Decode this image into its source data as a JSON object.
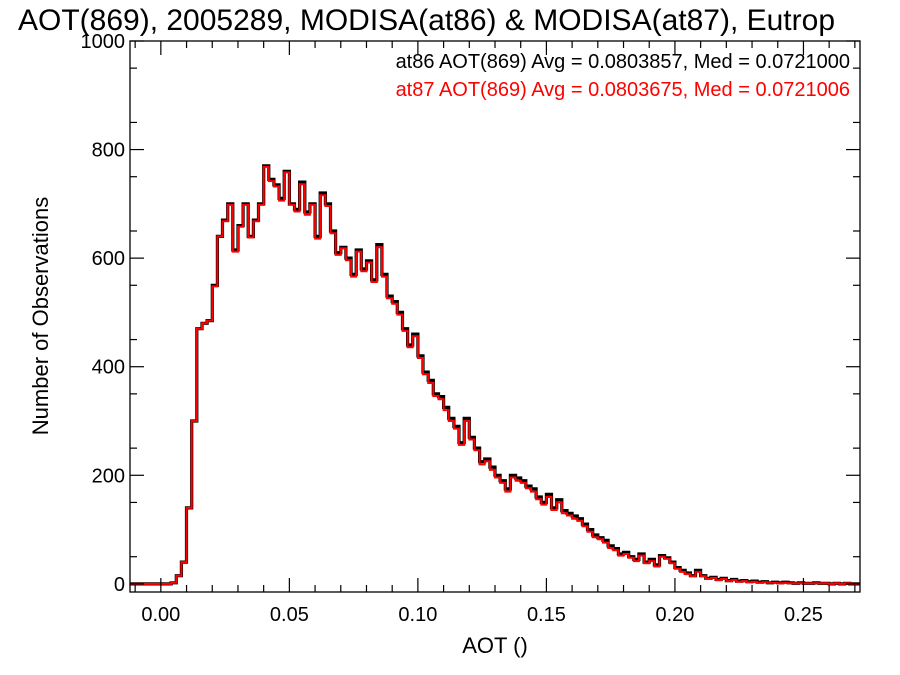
{
  "chart_data": {
    "type": "line",
    "title": "AOT(869), 2005289, MODISA(at86) & MODISA(at87), Eutrop",
    "xlabel": "AOT ()",
    "ylabel": "Number of Observations",
    "xlim": [
      -0.012,
      0.272
    ],
    "ylim": [
      -15,
      1000
    ],
    "xticks": [
      0.0,
      0.05,
      0.1,
      0.15,
      0.2,
      0.25
    ],
    "xtick_labels": [
      "0.00",
      "0.05",
      "0.10",
      "0.15",
      "0.20",
      "0.25"
    ],
    "yticks": [
      0,
      200,
      400,
      600,
      800,
      1000
    ],
    "ytick_labels": [
      "0",
      "200",
      "400",
      "600",
      "800",
      "1000"
    ],
    "grid": false,
    "legend": "top-right, text annotations",
    "annotations": [
      {
        "text": "at86 AOT(869) Avg = 0.0803857, Med = 0.0721000",
        "color": "#000000"
      },
      {
        "text": "at87 AOT(869) Avg = 0.0803675, Med = 0.0721006",
        "color": "#ff0000"
      }
    ],
    "x": [
      -0.012,
      0.004,
      0.006,
      0.008,
      0.01,
      0.012,
      0.014,
      0.016,
      0.018,
      0.02,
      0.022,
      0.024,
      0.026,
      0.028,
      0.03,
      0.032,
      0.034,
      0.036,
      0.038,
      0.04,
      0.042,
      0.044,
      0.046,
      0.048,
      0.05,
      0.052,
      0.054,
      0.056,
      0.058,
      0.06,
      0.062,
      0.064,
      0.066,
      0.068,
      0.07,
      0.072,
      0.074,
      0.076,
      0.078,
      0.08,
      0.082,
      0.084,
      0.086,
      0.088,
      0.09,
      0.092,
      0.094,
      0.096,
      0.098,
      0.1,
      0.102,
      0.104,
      0.106,
      0.108,
      0.11,
      0.112,
      0.114,
      0.116,
      0.118,
      0.12,
      0.122,
      0.124,
      0.126,
      0.128,
      0.13,
      0.132,
      0.134,
      0.136,
      0.138,
      0.14,
      0.142,
      0.144,
      0.146,
      0.148,
      0.15,
      0.152,
      0.154,
      0.156,
      0.158,
      0.16,
      0.162,
      0.164,
      0.166,
      0.168,
      0.17,
      0.172,
      0.174,
      0.176,
      0.178,
      0.18,
      0.182,
      0.184,
      0.186,
      0.188,
      0.19,
      0.192,
      0.194,
      0.196,
      0.198,
      0.2,
      0.202,
      0.204,
      0.206,
      0.208,
      0.21,
      0.212,
      0.214,
      0.216,
      0.218,
      0.22,
      0.222,
      0.224,
      0.226,
      0.228,
      0.23,
      0.232,
      0.234,
      0.236,
      0.238,
      0.24,
      0.242,
      0.244,
      0.246,
      0.248,
      0.25,
      0.252,
      0.254,
      0.256,
      0.258,
      0.26,
      0.262,
      0.264,
      0.266,
      0.268,
      0.27,
      0.272
    ],
    "series": [
      {
        "color": "#000000",
        "values": [
          0,
          2,
          15,
          40,
          140,
          300,
          470,
          480,
          485,
          550,
          640,
          670,
          700,
          615,
          660,
          700,
          640,
          670,
          700,
          770,
          745,
          735,
          710,
          760,
          700,
          690,
          740,
          685,
          700,
          640,
          720,
          700,
          650,
          610,
          620,
          600,
          570,
          615,
          580,
          595,
          560,
          625,
          570,
          530,
          520,
          500,
          470,
          440,
          460,
          420,
          390,
          375,
          350,
          345,
          325,
          305,
          290,
          260,
          305,
          270,
          250,
          225,
          230,
          215,
          200,
          190,
          175,
          200,
          195,
          190,
          180,
          175,
          160,
          150,
          165,
          140,
          155,
          135,
          130,
          125,
          120,
          110,
          100,
          90,
          85,
          80,
          70,
          65,
          55,
          58,
          50,
          45,
          55,
          40,
          45,
          35,
          52,
          48,
          40,
          30,
          25,
          20,
          15,
          25,
          15,
          10,
          12,
          8,
          10,
          6,
          8,
          5,
          6,
          4,
          5,
          3,
          4,
          2,
          3,
          2,
          3,
          2,
          1,
          2,
          1,
          1,
          2,
          1,
          1,
          0,
          1,
          0,
          1,
          0,
          0,
          0
        ]
      },
      {
        "color": "#ff0000",
        "values": [
          0,
          2,
          15,
          40,
          140,
          300,
          470,
          480,
          485,
          548,
          640,
          668,
          698,
          612,
          658,
          698,
          638,
          668,
          698,
          768,
          742,
          732,
          706,
          758,
          698,
          686,
          736,
          680,
          698,
          636,
          716,
          696,
          646,
          606,
          618,
          596,
          566,
          612,
          576,
          592,
          556,
          620,
          566,
          526,
          516,
          496,
          466,
          436,
          456,
          416,
          386,
          370,
          346,
          340,
          320,
          300,
          286,
          256,
          300,
          266,
          246,
          220,
          226,
          210,
          196,
          186,
          170,
          196,
          190,
          186,
          176,
          170,
          156,
          146,
          160,
          136,
          150,
          130,
          126,
          120,
          116,
          106,
          96,
          86,
          82,
          76,
          66,
          62,
          52,
          55,
          48,
          42,
          52,
          38,
          42,
          32,
          50,
          46,
          38,
          28,
          22,
          18,
          14,
          22,
          14,
          9,
          11,
          7,
          9,
          5,
          7,
          4,
          5,
          3,
          4,
          2,
          3,
          2,
          2,
          1,
          2,
          1,
          1,
          1,
          1,
          1,
          1,
          1,
          1,
          0,
          1,
          0,
          1,
          0,
          0,
          0
        ]
      }
    ]
  }
}
